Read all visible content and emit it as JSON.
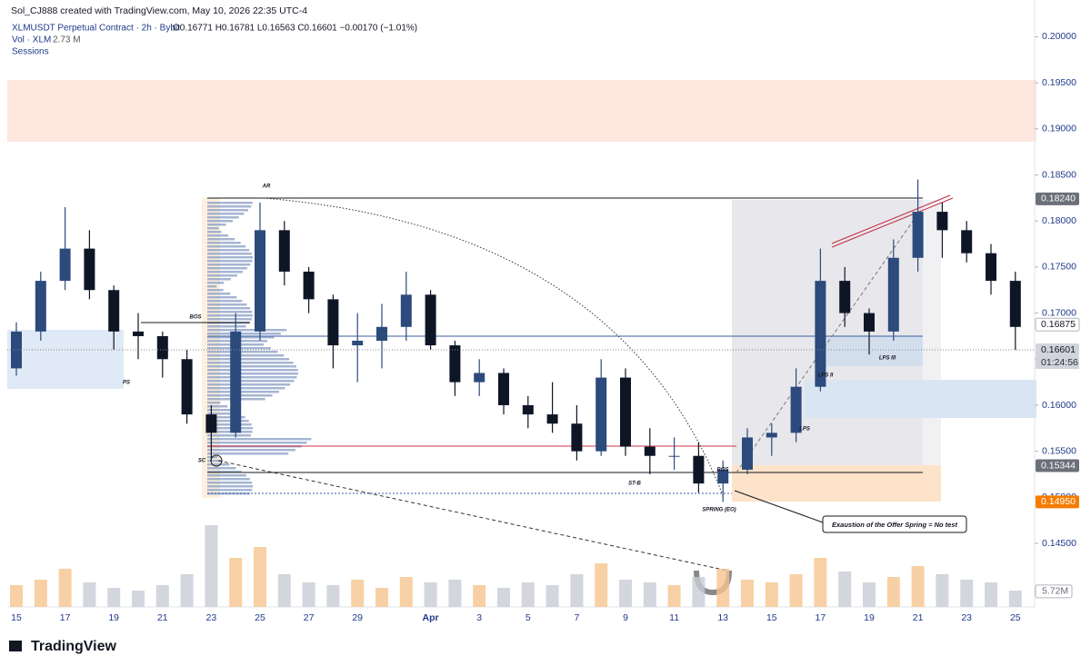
{
  "chart_data": {
    "type": "candlestick",
    "watermark": "Sol_CJ888 created with TradingView.com, May 10, 2026 22:35 UTC-4",
    "title": "XLMUSDT Perpetual Contract · 2h · Bybit",
    "legend_values": "O0.16771 H0.16781 L0.16563 C0.16601 −0.00170 (−1.01%)",
    "volume_label": "Vol · XLM",
    "volume_last": "2.73 M",
    "sessions_label": "Sessions",
    "brand": "TradingView",
    "categories": [
      "15",
      null,
      "17",
      null,
      "19",
      null,
      "21",
      null,
      "23",
      null,
      "25",
      null,
      "27",
      null,
      "29",
      null,
      null,
      "Apr",
      null,
      "3",
      null,
      "5",
      null,
      "7",
      null,
      "9",
      null,
      "11",
      null,
      "13",
      null,
      "15",
      null,
      "17",
      null,
      "19",
      null,
      "21",
      null,
      "23",
      null,
      "25"
    ],
    "open": [
      0.164,
      0.168,
      0.1735,
      0.177,
      0.1725,
      0.168,
      0.1675,
      0.165,
      0.159,
      0.157,
      0.168,
      0.179,
      0.1745,
      0.1715,
      0.1665,
      0.167,
      0.1685,
      0.172,
      0.1665,
      0.1625,
      0.1635,
      0.16,
      0.159,
      0.158,
      0.155,
      0.163,
      0.1555,
      0.1545,
      0.1545,
      0.1515,
      0.153,
      0.1565,
      0.157,
      0.162,
      0.1735,
      0.17,
      0.168,
      0.176,
      0.181,
      0.179,
      0.1765,
      0.1735
    ],
    "high": [
      0.169,
      0.1745,
      0.1815,
      0.179,
      0.173,
      0.17,
      0.168,
      0.166,
      0.16,
      0.17,
      0.182,
      0.18,
      0.175,
      0.172,
      0.17,
      0.171,
      0.1745,
      0.1725,
      0.167,
      0.165,
      0.164,
      0.161,
      0.1625,
      0.16,
      0.165,
      0.164,
      0.1575,
      0.1565,
      0.156,
      0.154,
      0.1575,
      0.158,
      0.164,
      0.177,
      0.175,
      0.1705,
      0.178,
      0.1845,
      0.182,
      0.18,
      0.1775,
      0.1745
    ],
    "low": [
      0.1632,
      0.167,
      0.1725,
      0.1715,
      0.166,
      0.165,
      0.163,
      0.158,
      0.154,
      0.1565,
      0.167,
      0.173,
      0.17,
      0.164,
      0.1625,
      0.164,
      0.167,
      0.166,
      0.161,
      0.161,
      0.159,
      0.1575,
      0.157,
      0.154,
      0.1545,
      0.1545,
      0.1525,
      0.153,
      0.1505,
      0.1495,
      0.1525,
      0.1545,
      0.156,
      0.1615,
      0.1685,
      0.1655,
      0.167,
      0.1745,
      0.176,
      0.1755,
      0.172,
      0.166
    ],
    "close": [
      0.168,
      0.1735,
      0.177,
      0.1725,
      0.168,
      0.1675,
      0.165,
      0.159,
      0.157,
      0.168,
      0.179,
      0.1745,
      0.1715,
      0.1665,
      0.167,
      0.1685,
      0.172,
      0.1665,
      0.1625,
      0.1635,
      0.16,
      0.159,
      0.158,
      0.155,
      0.163,
      0.1555,
      0.1545,
      0.1545,
      0.1515,
      0.153,
      0.1565,
      0.157,
      0.162,
      0.1735,
      0.17,
      0.168,
      0.176,
      0.181,
      0.179,
      0.1765,
      0.1735,
      0.1685
    ],
    "volume": [
      8,
      10,
      14,
      9,
      7,
      6,
      8,
      12,
      30,
      18,
      22,
      12,
      9,
      8,
      10,
      7,
      11,
      9,
      10,
      8,
      7,
      9,
      8,
      12,
      16,
      10,
      9,
      8,
      11,
      14,
      10,
      9,
      12,
      18,
      13,
      9,
      11,
      15,
      12,
      10,
      9,
      6
    ],
    "up_color": "#2c4a7c",
    "down_color": "#0e1626",
    "volume_up_color": "#f6c48e",
    "volume_down_color": "#c8ccd4",
    "ylim": [
      0.1381,
      0.2032
    ],
    "vlim": [
      0,
      40
    ],
    "yticks": [
      {
        "value": 0.145,
        "label": "0.14500"
      },
      {
        "value": 0.15,
        "label": "0.15000"
      },
      {
        "value": 0.155,
        "label": "0.15500"
      },
      {
        "value": 0.16,
        "label": "0.16000"
      },
      {
        "value": 0.165,
        "label": "0.16500"
      },
      {
        "value": 0.17,
        "label": "0.17000"
      },
      {
        "value": 0.175,
        "label": "0.17500"
      },
      {
        "value": 0.18,
        "label": "0.18000"
      },
      {
        "value": 0.185,
        "label": "0.18500"
      },
      {
        "value": 0.19,
        "label": "0.19000"
      },
      {
        "value": 0.195,
        "label": "0.19500"
      },
      {
        "value": 0.2,
        "label": "0.20000"
      }
    ],
    "price_tags": [
      {
        "value": 0.1824,
        "label": "0.18240",
        "color": "#6b6f78"
      },
      {
        "value": 0.16875,
        "label": "0.16875",
        "color": "#ffffff"
      },
      {
        "value": 0.16601,
        "label": "0.16601",
        "color": "#d1d4dc"
      },
      {
        "value": 0.15344,
        "label": "0.15344",
        "color": "#6b6f78"
      },
      {
        "value": 0.1495,
        "label": "0.14950",
        "color": "#f57c00"
      }
    ],
    "countdown": "01:24:56",
    "volume_tag": {
      "value": 5.72,
      "label": "5.72M"
    },
    "annotations": [
      "AR",
      "BOS",
      "PS",
      "SC",
      "ST-B",
      "SPRING (EO)",
      "BOS",
      "LPS",
      "LPS II",
      "LPS III",
      "Exaustion of the Offer Spring = No test"
    ]
  }
}
